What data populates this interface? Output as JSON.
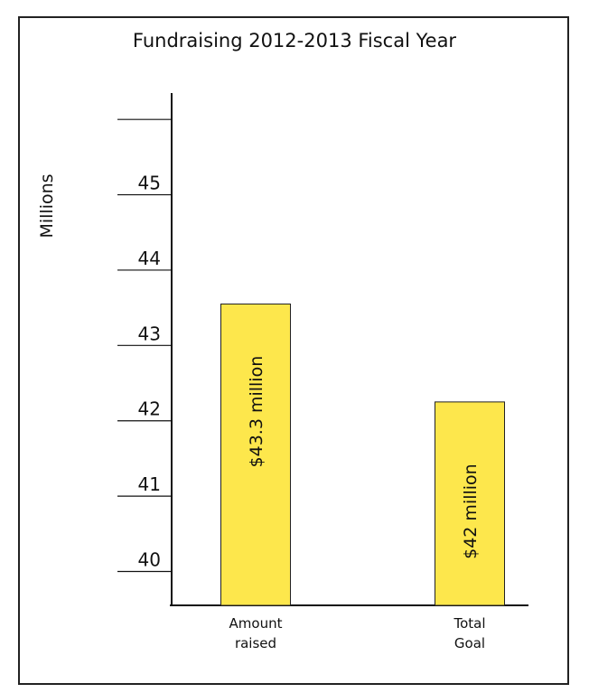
{
  "chart_data": {
    "type": "bar",
    "title": "Fundraising 2012-2013 Fiscal Year",
    "ylabel": "Millions",
    "xlabel": "",
    "categories": [
      [
        "Amount",
        "raised"
      ],
      [
        "Total",
        "Goal"
      ]
    ],
    "values": [
      43.3,
      42
    ],
    "bar_labels": [
      "$43.3 million",
      "$42 million"
    ],
    "ylim": [
      39.3,
      46.1
    ],
    "yticks": [
      40,
      41,
      42,
      43,
      44,
      45
    ],
    "colors": {
      "bar": "#fde74c",
      "bar_border": "#222222"
    },
    "grid": false,
    "legend": "none"
  }
}
